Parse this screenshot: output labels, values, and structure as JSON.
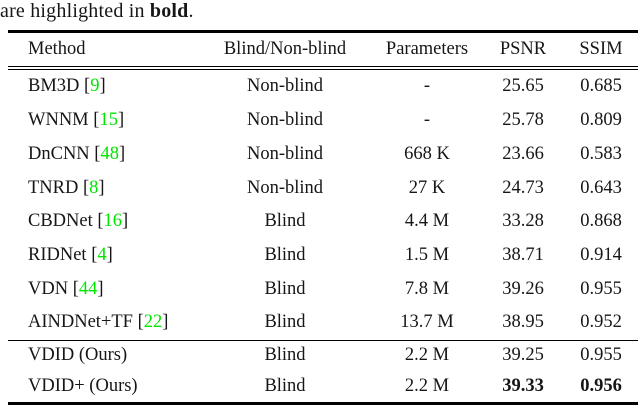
{
  "caption": {
    "prefix": "are highlighted in ",
    "bold_word": "bold",
    "suffix": "."
  },
  "table": {
    "columns": [
      "Method",
      "Blind/Non-blind",
      "Parameters",
      "PSNR",
      "SSIM"
    ],
    "rows": [
      {
        "method": "BM3D",
        "cite": "9",
        "blind_type": "Non-blind",
        "parameters": "-",
        "psnr": "25.65",
        "ssim": "0.685",
        "section": 1,
        "bold_metrics": false
      },
      {
        "method": "WNNM",
        "cite": "15",
        "blind_type": "Non-blind",
        "parameters": "-",
        "psnr": "25.78",
        "ssim": "0.809",
        "section": 1,
        "bold_metrics": false
      },
      {
        "method": "DnCNN",
        "cite": "48",
        "blind_type": "Non-blind",
        "parameters": "668 K",
        "psnr": "23.66",
        "ssim": "0.583",
        "section": 1,
        "bold_metrics": false
      },
      {
        "method": "TNRD",
        "cite": "8",
        "blind_type": "Non-blind",
        "parameters": "27 K",
        "psnr": "24.73",
        "ssim": "0.643",
        "section": 1,
        "bold_metrics": false
      },
      {
        "method": "CBDNet",
        "cite": "16",
        "blind_type": "Blind",
        "parameters": "4.4 M",
        "psnr": "33.28",
        "ssim": "0.868",
        "section": 1,
        "bold_metrics": false
      },
      {
        "method": "RIDNet",
        "cite": "4",
        "blind_type": "Blind",
        "parameters": "1.5 M",
        "psnr": "38.71",
        "ssim": "0.914",
        "section": 1,
        "bold_metrics": false
      },
      {
        "method": "VDN",
        "cite": "44",
        "blind_type": "Blind",
        "parameters": "7.8 M",
        "psnr": "39.26",
        "ssim": "0.955",
        "section": 1,
        "bold_metrics": false
      },
      {
        "method": "AINDNet+TF",
        "cite": "22",
        "blind_type": "Blind",
        "parameters": "13.7 M",
        "psnr": "38.95",
        "ssim": "0.952",
        "section": 1,
        "bold_metrics": false
      },
      {
        "method": "VDID (Ours)",
        "cite": null,
        "blind_type": "Blind",
        "parameters": "2.2 M",
        "psnr": "39.25",
        "ssim": "0.955",
        "section": 2,
        "bold_metrics": false
      },
      {
        "method": "VDID+ (Ours)",
        "cite": null,
        "blind_type": "Blind",
        "parameters": "2.2 M",
        "psnr": "39.33",
        "ssim": "0.956",
        "section": 2,
        "bold_metrics": true
      }
    ]
  },
  "colors": {
    "citation_green": "#00e400",
    "text": "#161616",
    "rule": "#000000"
  }
}
